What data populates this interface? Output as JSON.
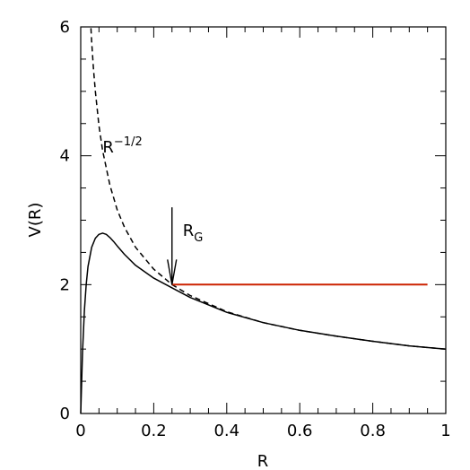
{
  "chart_data": {
    "type": "line",
    "xlabel": "R",
    "ylabel": "V(R)",
    "xlim": [
      0,
      1
    ],
    "ylim": [
      0,
      6
    ],
    "xticks": [
      0,
      0.2,
      0.4,
      0.6,
      0.8,
      1
    ],
    "xtick_labels": [
      "0",
      "0.2",
      "0.4",
      "0.6",
      "0.8",
      "1"
    ],
    "yticks": [
      0,
      2,
      4,
      6
    ],
    "ytick_labels": [
      "0",
      "2",
      "4",
      "6"
    ],
    "grid": false,
    "series": [
      {
        "label": "R^-1/2",
        "style": "dashed",
        "color": "#000000",
        "x": [
          0.028,
          0.03,
          0.035,
          0.04,
          0.05,
          0.06,
          0.08,
          0.1,
          0.12,
          0.15,
          0.2,
          0.25,
          0.3,
          0.4,
          0.5,
          0.6,
          0.7,
          0.8,
          0.9,
          1.0
        ],
        "y": [
          5.98,
          5.77,
          5.35,
          5.0,
          4.47,
          4.08,
          3.54,
          3.16,
          2.89,
          2.58,
          2.24,
          2.0,
          1.83,
          1.58,
          1.41,
          1.29,
          1.2,
          1.12,
          1.05,
          1.0
        ]
      },
      {
        "style": "solid",
        "color": "#000000",
        "x": [
          0.0,
          0.005,
          0.01,
          0.015,
          0.02,
          0.03,
          0.04,
          0.05,
          0.06,
          0.07,
          0.08,
          0.09,
          0.1,
          0.12,
          0.15,
          0.2,
          0.25,
          0.3,
          0.4,
          0.5,
          0.6,
          0.7,
          0.8,
          0.9,
          1.0
        ],
        "y": [
          0.0,
          0.95,
          1.6,
          2.0,
          2.28,
          2.58,
          2.72,
          2.78,
          2.8,
          2.78,
          2.73,
          2.67,
          2.6,
          2.47,
          2.3,
          2.1,
          1.95,
          1.8,
          1.57,
          1.41,
          1.29,
          1.2,
          1.12,
          1.05,
          1.0
        ]
      },
      {
        "style": "solid",
        "color": "#cc2200",
        "x": [
          0.25,
          0.95
        ],
        "y": [
          2.0,
          2.0
        ]
      }
    ],
    "annotations": {
      "dashed_label": {
        "base": "R",
        "exponent": "−1/2",
        "x": 0.06,
        "y": 4.05
      },
      "arrow": {
        "base": "R",
        "subscript": "G",
        "x": 0.25,
        "y_from": 3.2,
        "y_to": 2.0
      }
    }
  }
}
